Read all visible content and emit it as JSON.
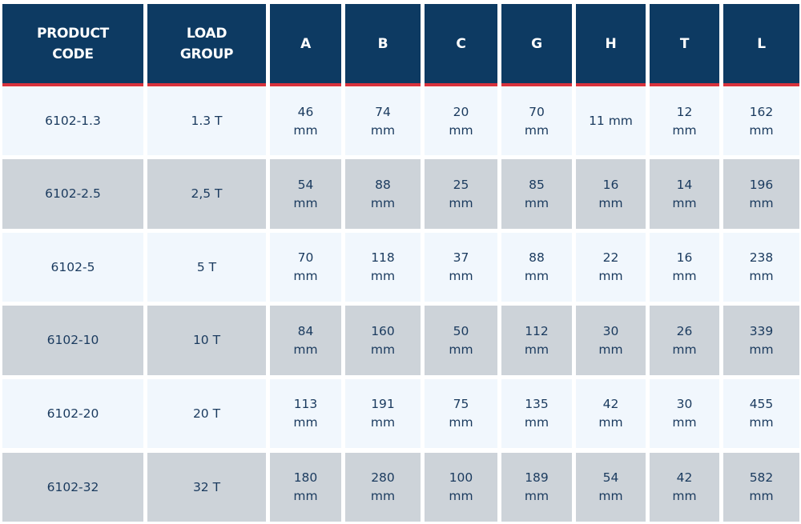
{
  "table": {
    "headers": [
      "PRODUCT\nCODE",
      "LOAD\nGROUP",
      "A",
      "B",
      "C",
      "G",
      "H",
      "T",
      "L"
    ],
    "rows": [
      [
        "6102-1.3",
        "1.3 T",
        "46\nmm",
        "74\nmm",
        "20\nmm",
        "70\nmm",
        "11 mm",
        "12\nmm",
        "162\nmm"
      ],
      [
        "6102-2.5",
        "2,5 T",
        "54\nmm",
        "88\nmm",
        "25\nmm",
        "85\nmm",
        "16\nmm",
        "14\nmm",
        "196\nmm"
      ],
      [
        "6102-5",
        "5 T",
        "70\nmm",
        "118\nmm",
        "37\nmm",
        "88\nmm",
        "22\nmm",
        "16\nmm",
        "238\nmm"
      ],
      [
        "6102-10",
        "10 T",
        "84\nmm",
        "160\nmm",
        "50\nmm",
        "112\nmm",
        "30\nmm",
        "26\nmm",
        "339\nmm"
      ],
      [
        "6102-20",
        "20 T",
        "113\nmm",
        "191\nmm",
        "75\nmm",
        "135\nmm",
        "42\nmm",
        "30\nmm",
        "455\nmm"
      ],
      [
        "6102-32",
        "32 T",
        "180\nmm",
        "280\nmm",
        "100\nmm",
        "189\nmm",
        "54\nmm",
        "42\nmm",
        "582\nmm"
      ]
    ]
  },
  "colors": {
    "header_bg": "#0d3a62",
    "header_underline": "#d9323c",
    "row_light": "#f1f7fd",
    "row_dark": "#cdd3d9",
    "body_text": "#1a3a5e"
  }
}
